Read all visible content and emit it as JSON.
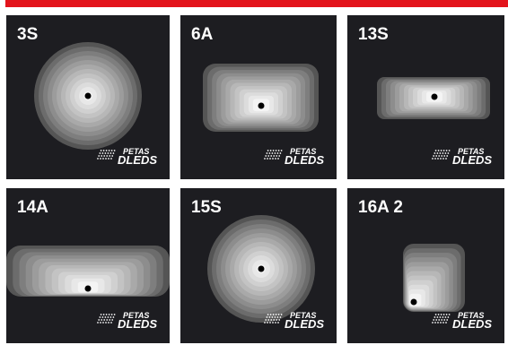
{
  "tiles": [
    {
      "label": "3S",
      "logo_top": "PETAS",
      "logo_bottom": "DLEDS"
    },
    {
      "label": "6A",
      "logo_top": "PETAS",
      "logo_bottom": "DLEDS"
    },
    {
      "label": "13S",
      "logo_top": "PETAS",
      "logo_bottom": "DLEDS"
    },
    {
      "label": "14A",
      "logo_top": "PETAS",
      "logo_bottom": "DLEDS"
    },
    {
      "label": "15S",
      "logo_top": "PETAS",
      "logo_bottom": "DLEDS"
    },
    {
      "label": "16A 2",
      "logo_top": "PETAS",
      "logo_bottom": "DLEDS"
    }
  ]
}
